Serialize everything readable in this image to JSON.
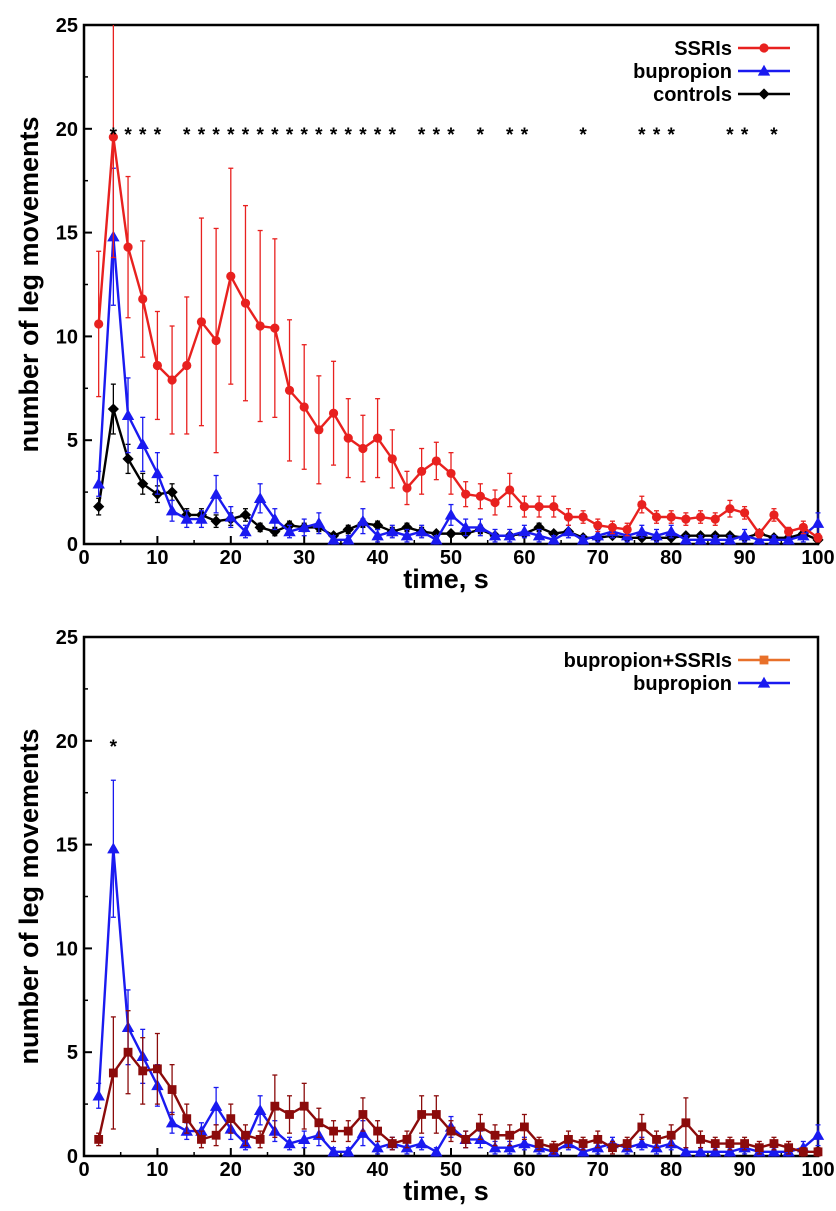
{
  "chart_data": [
    {
      "type": "line",
      "xlabel": "time, s",
      "ylabel": "number of leg movements",
      "xlim": [
        0,
        100
      ],
      "ylim": [
        0,
        25
      ],
      "x_ticks": [
        "0",
        "10",
        "20",
        "30",
        "40",
        "50",
        "60",
        "70",
        "80",
        "90",
        "100"
      ],
      "y_ticks": [
        "0",
        "5",
        "10",
        "15",
        "20",
        "25"
      ],
      "legend_position": "top-right",
      "x": [
        2,
        4,
        6,
        8,
        10,
        12,
        14,
        16,
        18,
        20,
        22,
        24,
        26,
        28,
        30,
        32,
        34,
        36,
        38,
        40,
        42,
        44,
        46,
        48,
        50,
        52,
        54,
        56,
        58,
        60,
        62,
        64,
        66,
        68,
        70,
        72,
        74,
        76,
        78,
        80,
        82,
        84,
        86,
        88,
        90,
        92,
        94,
        96,
        98,
        100
      ],
      "series": [
        {
          "name": "SSRIs",
          "color": "#e8211f",
          "marker": "circle",
          "values": [
            10.6,
            19.6,
            14.3,
            11.8,
            8.6,
            7.9,
            8.6,
            10.7,
            9.8,
            12.9,
            11.6,
            10.5,
            10.4,
            7.4,
            6.6,
            5.5,
            6.3,
            5.1,
            4.6,
            5.1,
            4.1,
            2.7,
            3.5,
            4.0,
            3.4,
            2.4,
            2.3,
            2.0,
            2.6,
            1.8,
            1.8,
            1.8,
            1.3,
            1.3,
            0.9,
            0.8,
            0.7,
            1.9,
            1.3,
            1.3,
            1.2,
            1.3,
            1.2,
            1.7,
            1.5,
            0.5,
            1.4,
            0.6,
            0.8,
            0.3
          ],
          "errors": [
            3.5,
            5.8,
            3.4,
            2.8,
            2.6,
            2.6,
            3.3,
            5.0,
            5.4,
            5.2,
            4.7,
            4.6,
            4.3,
            3.4,
            3.0,
            2.6,
            2.5,
            1.9,
            1.6,
            1.9,
            1.4,
            0.8,
            1.1,
            0.9,
            1.0,
            0.6,
            0.6,
            0.6,
            0.8,
            0.5,
            0.5,
            0.5,
            0.4,
            0.3,
            0.3,
            0.3,
            0.3,
            0.4,
            0.3,
            0.3,
            0.3,
            0.3,
            0.3,
            0.4,
            0.3,
            0.2,
            0.3,
            0.2,
            0.3,
            0.2
          ]
        },
        {
          "name": "bupropion",
          "color": "#1a1af0",
          "marker": "triangle",
          "values": [
            2.9,
            14.8,
            6.2,
            4.8,
            3.4,
            1.6,
            1.2,
            1.2,
            2.4,
            1.3,
            0.6,
            2.2,
            1.2,
            0.6,
            0.8,
            1.0,
            0.2,
            0.2,
            1.1,
            0.4,
            0.6,
            0.4,
            0.6,
            0.2,
            1.4,
            0.8,
            0.8,
            0.4,
            0.4,
            0.6,
            0.4,
            0.2,
            0.6,
            0.2,
            0.4,
            0.6,
            0.4,
            0.6,
            0.4,
            0.6,
            0.2,
            0.2,
            0.2,
            0.2,
            0.4,
            0.2,
            0.2,
            0.2,
            0.4,
            1.0
          ],
          "errors": [
            0.6,
            3.3,
            1.8,
            1.3,
            1.0,
            0.5,
            0.4,
            0.4,
            0.9,
            0.5,
            0.3,
            0.7,
            0.5,
            0.3,
            0.4,
            0.5,
            0.2,
            0.2,
            0.6,
            0.3,
            0.3,
            0.3,
            0.3,
            0.2,
            0.5,
            0.4,
            0.4,
            0.3,
            0.3,
            0.3,
            0.3,
            0.2,
            0.3,
            0.2,
            0.3,
            0.3,
            0.3,
            0.3,
            0.3,
            0.3,
            0.2,
            0.2,
            0.2,
            0.2,
            0.3,
            0.2,
            0.2,
            0.2,
            0.3,
            0.5
          ]
        },
        {
          "name": "controls",
          "color": "#000000",
          "marker": "diamond",
          "values": [
            1.8,
            6.5,
            4.1,
            2.9,
            2.4,
            2.5,
            1.4,
            1.4,
            1.1,
            1.2,
            1.4,
            0.8,
            0.6,
            0.9,
            0.8,
            0.8,
            0.4,
            0.7,
            1.0,
            0.9,
            0.6,
            0.8,
            0.6,
            0.5,
            0.5,
            0.5,
            0.7,
            0.4,
            0.4,
            0.5,
            0.8,
            0.5,
            0.6,
            0.3,
            0.3,
            0.4,
            0.3,
            0.3,
            0.3,
            0.3,
            0.4,
            0.4,
            0.4,
            0.4,
            0.3,
            0.5,
            0.3,
            0.3,
            0.5,
            0.2
          ],
          "errors": [
            0.4,
            1.2,
            0.7,
            0.5,
            0.4,
            0.4,
            0.3,
            0.3,
            0.3,
            0.3,
            0.3,
            0.2,
            0.2,
            0.2,
            0.2,
            0.2,
            0.1,
            0.2,
            0.2,
            0.2,
            0.2,
            0.2,
            0.2,
            0.1,
            0.1,
            0.1,
            0.2,
            0.1,
            0.1,
            0.1,
            0.2,
            0.1,
            0.1,
            0.1,
            0.1,
            0.1,
            0.1,
            0.1,
            0.1,
            0.1,
            0.1,
            0.1,
            0.1,
            0.1,
            0.1,
            0.1,
            0.1,
            0.1,
            0.1,
            0.1
          ]
        }
      ],
      "significance_markers": [
        {
          "x": 4,
          "label": "*"
        },
        {
          "x": 6,
          "label": "*"
        },
        {
          "x": 8,
          "label": "*"
        },
        {
          "x": 10,
          "label": "*"
        },
        {
          "x": 14,
          "label": "*"
        },
        {
          "x": 16,
          "label": "*"
        },
        {
          "x": 18,
          "label": "*"
        },
        {
          "x": 20,
          "label": "*"
        },
        {
          "x": 22,
          "label": "*"
        },
        {
          "x": 24,
          "label": "*"
        },
        {
          "x": 26,
          "label": "*"
        },
        {
          "x": 28,
          "label": "*"
        },
        {
          "x": 30,
          "label": "*"
        },
        {
          "x": 32,
          "label": "*"
        },
        {
          "x": 34,
          "label": "*"
        },
        {
          "x": 36,
          "label": "*"
        },
        {
          "x": 38,
          "label": "*"
        },
        {
          "x": 40,
          "label": "*"
        },
        {
          "x": 42,
          "label": "*"
        },
        {
          "x": 46,
          "label": "*"
        },
        {
          "x": 48,
          "label": "*"
        },
        {
          "x": 50,
          "label": "*"
        },
        {
          "x": 54,
          "label": "*"
        },
        {
          "x": 58,
          "label": "*"
        },
        {
          "x": 60,
          "label": "*"
        },
        {
          "x": 68,
          "label": "*"
        },
        {
          "x": 76,
          "label": "*"
        },
        {
          "x": 78,
          "label": "*"
        },
        {
          "x": 80,
          "label": "*"
        },
        {
          "x": 88,
          "label": "*"
        },
        {
          "x": 90,
          "label": "*"
        },
        {
          "x": 94,
          "label": "*"
        }
      ],
      "significance_y": 20
    },
    {
      "type": "line",
      "xlabel": "time, s",
      "ylabel": "number of leg movements",
      "xlim": [
        0,
        100
      ],
      "ylim": [
        0,
        25
      ],
      "x_ticks": [
        "0",
        "10",
        "20",
        "30",
        "40",
        "50",
        "60",
        "70",
        "80",
        "90",
        "100"
      ],
      "y_ticks": [
        "0",
        "5",
        "10",
        "15",
        "20",
        "25"
      ],
      "legend_position": "top-right",
      "x": [
        2,
        4,
        6,
        8,
        10,
        12,
        14,
        16,
        18,
        20,
        22,
        24,
        26,
        28,
        30,
        32,
        34,
        36,
        38,
        40,
        42,
        44,
        46,
        48,
        50,
        52,
        54,
        56,
        58,
        60,
        62,
        64,
        66,
        68,
        70,
        72,
        74,
        76,
        78,
        80,
        82,
        84,
        86,
        88,
        90,
        92,
        94,
        96,
        98,
        100
      ],
      "series": [
        {
          "name": "bupropion+SSRIs",
          "color": "#8b0b0b",
          "legend_color": "#e8702a",
          "marker": "square",
          "values": [
            0.8,
            4.0,
            5.0,
            4.1,
            4.2,
            3.2,
            1.8,
            0.8,
            1.0,
            1.8,
            1.0,
            0.8,
            2.4,
            2.0,
            2.4,
            1.6,
            1.2,
            1.2,
            2.0,
            1.2,
            0.6,
            0.8,
            2.0,
            2.0,
            1.2,
            0.8,
            1.4,
            1.0,
            1.0,
            1.4,
            0.6,
            0.4,
            0.8,
            0.6,
            0.8,
            0.4,
            0.6,
            1.4,
            0.8,
            1.0,
            1.6,
            0.8,
            0.6,
            0.6,
            0.6,
            0.4,
            0.6,
            0.4,
            0.2,
            0.2
          ],
          "errors": [
            0.3,
            2.7,
            2.0,
            1.6,
            1.7,
            1.2,
            0.7,
            0.4,
            0.5,
            0.7,
            0.5,
            0.4,
            1.5,
            0.9,
            1.1,
            0.7,
            0.5,
            0.5,
            0.8,
            0.5,
            0.3,
            0.4,
            0.9,
            0.9,
            0.5,
            0.4,
            0.6,
            0.5,
            0.5,
            0.6,
            0.3,
            0.3,
            0.4,
            0.3,
            0.4,
            0.3,
            0.3,
            0.6,
            0.4,
            0.5,
            1.2,
            0.4,
            0.3,
            0.3,
            0.3,
            0.3,
            0.3,
            0.3,
            0.2,
            0.2
          ]
        },
        {
          "name": "bupropion",
          "color": "#1a1af0",
          "marker": "triangle",
          "values": [
            2.9,
            14.8,
            6.2,
            4.8,
            3.4,
            1.6,
            1.2,
            1.2,
            2.4,
            1.3,
            0.6,
            2.2,
            1.2,
            0.6,
            0.8,
            1.0,
            0.2,
            0.2,
            1.1,
            0.4,
            0.6,
            0.4,
            0.6,
            0.2,
            1.4,
            0.8,
            0.8,
            0.4,
            0.4,
            0.6,
            0.4,
            0.2,
            0.6,
            0.2,
            0.4,
            0.6,
            0.4,
            0.6,
            0.4,
            0.6,
            0.2,
            0.2,
            0.2,
            0.2,
            0.4,
            0.2,
            0.2,
            0.2,
            0.4,
            1.0
          ],
          "errors": [
            0.6,
            3.3,
            1.8,
            1.3,
            1.0,
            0.5,
            0.4,
            0.4,
            0.9,
            0.5,
            0.3,
            0.7,
            0.5,
            0.3,
            0.4,
            0.5,
            0.2,
            0.2,
            0.6,
            0.3,
            0.3,
            0.3,
            0.3,
            0.2,
            0.5,
            0.4,
            0.4,
            0.3,
            0.3,
            0.3,
            0.3,
            0.2,
            0.3,
            0.2,
            0.3,
            0.3,
            0.3,
            0.3,
            0.3,
            0.3,
            0.2,
            0.2,
            0.2,
            0.2,
            0.3,
            0.2,
            0.2,
            0.2,
            0.3,
            0.5
          ]
        }
      ],
      "significance_markers": [
        {
          "x": 4,
          "label": "*"
        }
      ],
      "significance_y": 20
    }
  ]
}
